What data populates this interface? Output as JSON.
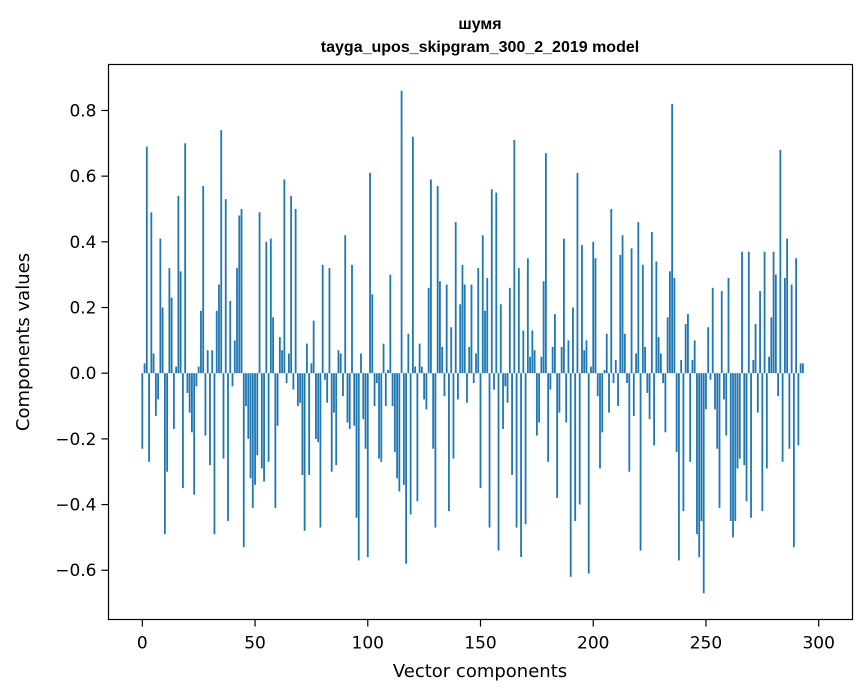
{
  "chart_data": {
    "type": "bar",
    "title_line1": "шумя",
    "title_line2": "tayga_upos_skipgram_300_2_2019 model",
    "xlabel": "Vector components",
    "ylabel": "Components values",
    "xlim": [
      -15,
      315
    ],
    "ylim": [
      -0.75,
      0.94
    ],
    "xticks": [
      0,
      50,
      100,
      150,
      200,
      250,
      300
    ],
    "xtick_labels": [
      "0",
      "50",
      "100",
      "150",
      "200",
      "250",
      "300"
    ],
    "yticks": [
      -0.6,
      -0.4,
      -0.2,
      0.0,
      0.2,
      0.4,
      0.6,
      0.8
    ],
    "ytick_labels": [
      "−0.6",
      "−0.4",
      "−0.2",
      "0.0",
      "0.2",
      "0.4",
      "0.6",
      "0.8"
    ],
    "bar_color": "#1f77b4",
    "values": [
      -0.23,
      0.03,
      0.69,
      -0.27,
      0.49,
      0.06,
      -0.13,
      -0.08,
      0.41,
      0.2,
      -0.49,
      -0.3,
      0.32,
      0.23,
      -0.17,
      0.02,
      0.54,
      0.31,
      -0.35,
      0.7,
      -0.06,
      -0.12,
      -0.18,
      -0.37,
      -0.04,
      0.02,
      0.19,
      0.57,
      -0.19,
      0.07,
      -0.28,
      0.07,
      -0.49,
      0.19,
      0.27,
      0.74,
      -0.26,
      0.53,
      -0.45,
      0.22,
      -0.04,
      0.1,
      0.32,
      0.48,
      0.5,
      -0.53,
      -0.1,
      -0.2,
      -0.32,
      -0.41,
      -0.34,
      -0.25,
      0.49,
      -0.29,
      -0.33,
      0.4,
      -0.27,
      0.41,
      0.17,
      -0.41,
      -0.16,
      0.11,
      0.07,
      0.59,
      -0.03,
      0.06,
      0.54,
      -0.05,
      0.5,
      -0.1,
      -0.09,
      -0.31,
      -0.48,
      0.09,
      -0.31,
      0.03,
      0.16,
      -0.2,
      -0.21,
      -0.47,
      0.33,
      -0.02,
      -0.09,
      0.32,
      -0.3,
      -0.12,
      -0.28,
      0.07,
      0.06,
      -0.07,
      0.42,
      -0.15,
      -0.17,
      0.33,
      -0.16,
      -0.44,
      -0.57,
      0.06,
      -0.14,
      -0.23,
      -0.56,
      0.61,
      0.24,
      -0.1,
      -0.03,
      -0.26,
      -0.27,
      0.09,
      -0.1,
      0.01,
      0.3,
      -0.1,
      -0.24,
      -0.32,
      -0.36,
      0.86,
      -0.34,
      -0.58,
      0.12,
      -0.43,
      0.72,
      0.02,
      -0.39,
      0.09,
      0.02,
      -0.08,
      -0.11,
      0.26,
      0.59,
      -0.23,
      -0.47,
      0.57,
      0.28,
      0.08,
      -0.07,
      0.27,
      -0.42,
      0.14,
      -0.26,
      0.46,
      -0.08,
      0.21,
      0.33,
      0.27,
      -0.09,
      0.08,
      0.27,
      -0.03,
      0.06,
      0.32,
      -0.35,
      0.42,
      0.19,
      0.29,
      -0.47,
      0.56,
      -0.05,
      0.55,
      -0.54,
      0.21,
      -0.17,
      -0.04,
      -0.09,
      0.26,
      -0.31,
      0.71,
      -0.47,
      0.32,
      -0.56,
      0.13,
      -0.46,
      0.35,
      0.05,
      0.13,
      0.07,
      -0.19,
      -0.15,
      0.05,
      0.28,
      0.67,
      -0.27,
      -0.05,
      0.08,
      0.18,
      -0.38,
      -0.12,
      0.08,
      0.41,
      -0.15,
      0.1,
      -0.62,
      0.2,
      -0.45,
      0.61,
      -0.4,
      0.39,
      0.07,
      0.1,
      -0.61,
      0.02,
      0.4,
      0.35,
      -0.07,
      -0.29,
      -0.18,
      0.01,
      0.12,
      -0.12,
      0.5,
      -0.03,
      0.04,
      -0.1,
      0.36,
      0.42,
      0.12,
      -0.03,
      -0.3,
      0.38,
      -0.13,
      0.06,
      0.46,
      -0.54,
      0.33,
      0.08,
      -0.06,
      -0.14,
      0.43,
      -0.22,
      0.34,
      0.11,
      0.06,
      -0.03,
      -0.18,
      0.17,
      0.31,
      0.82,
      0.29,
      -0.24,
      -0.57,
      0.04,
      -0.42,
      0.15,
      0.18,
      -0.27,
      0.04,
      0.1,
      -0.49,
      -0.56,
      -0.45,
      -0.67,
      -0.11,
      0.14,
      -0.02,
      0.26,
      -0.11,
      -0.23,
      -0.41,
      0.25,
      -0.08,
      -0.19,
      0.29,
      -0.45,
      -0.5,
      -0.45,
      -0.29,
      -0.26,
      0.37,
      -0.28,
      -0.39,
      0.37,
      -0.44,
      0.04,
      0.15,
      -0.12,
      0.25,
      -0.42,
      0.37,
      -0.29,
      0.05,
      0.17,
      0.37,
      0.3,
      -0.07,
      0.68,
      -0.27,
      0.29,
      0.41,
      -0.23,
      0.27,
      -0.53,
      0.35,
      -0.22,
      0.03,
      0.03
    ]
  }
}
